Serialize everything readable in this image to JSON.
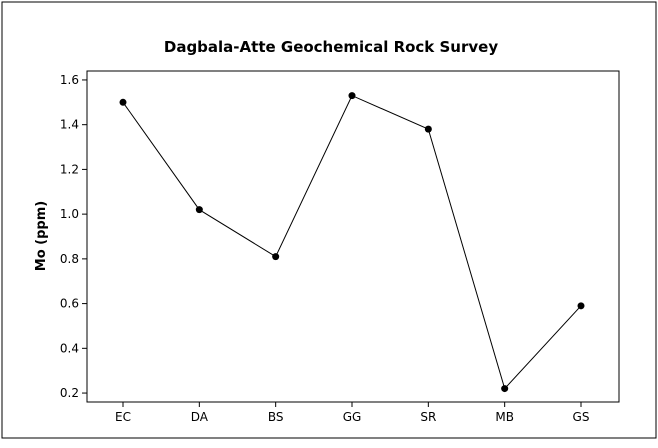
{
  "chart_data": {
    "type": "line",
    "title": "Dagbala-Atte Geochemical Rock Survey",
    "xlabel": "",
    "ylabel": "Mo (ppm)",
    "categories": [
      "EC",
      "DA",
      "BS",
      "GG",
      "SR",
      "MB",
      "GS"
    ],
    "series": [
      {
        "values": [
          1.5,
          1.02,
          0.81,
          1.53,
          1.38,
          0.22,
          0.59
        ]
      }
    ],
    "yticks": [
      "0.2",
      "0.4",
      "0.6",
      "0.8",
      "1.0",
      "1.2",
      "1.4",
      "1.6"
    ],
    "ylim": [
      0.16,
      1.64
    ],
    "grid": false,
    "colors": {
      "line": "#000000",
      "marker": "#000000",
      "frame": "#000000",
      "background": "#ffffff"
    }
  }
}
